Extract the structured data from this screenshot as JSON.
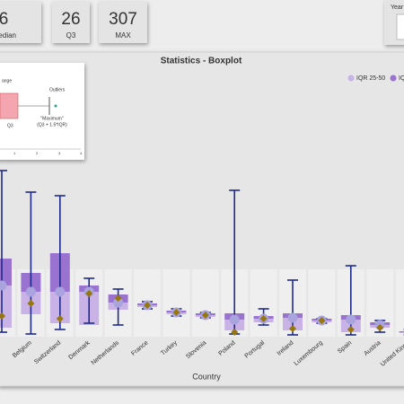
{
  "cards": [
    {
      "value": "6",
      "label": "Median"
    },
    {
      "value": "26",
      "label": "Q3"
    },
    {
      "value": "307",
      "label": "MAX"
    }
  ],
  "year_filter": {
    "label": "Year"
  },
  "inset": {
    "labels": [
      "ange",
      "Outliers",
      "Q3",
      "\"Maximum\"",
      "(Q3 + 1.5*IQR)"
    ],
    "ticks": [
      "1",
      "2",
      "3",
      "4"
    ]
  },
  "chart_data": {
    "type": "boxplot",
    "title": "Statistics - Boxplot",
    "x_label": "Country",
    "categories": [
      null,
      "Belgium",
      "Switzerland",
      "Denmark",
      "Netherlands",
      "France",
      "Turkey",
      "Slovenia",
      "Poland",
      "Portugal",
      "Ireland",
      "Luxembourg",
      "Spain",
      "Austria",
      "United Kingd"
    ],
    "low": [
      5,
      3,
      8,
      15,
      13,
      31,
      23,
      21,
      3,
      13,
      2,
      15,
      2,
      5,
      2
    ],
    "q1": [
      10,
      25,
      15,
      13,
      30,
      33,
      25,
      22,
      7,
      16,
      7,
      16,
      5,
      10,
      4
    ],
    "median": [
      57,
      50,
      50,
      50,
      38,
      35,
      27,
      24,
      19,
      20,
      21,
      18,
      19,
      13,
      5
    ],
    "q3": [
      87,
      71,
      93,
      57,
      47,
      37,
      29,
      26,
      26,
      23,
      26,
      20,
      24,
      16,
      6
    ],
    "high": [
      185,
      161,
      157,
      65,
      53,
      39,
      31,
      27,
      163,
      31,
      63,
      20,
      79,
      18,
      8
    ],
    "mean": [
      23,
      37,
      20,
      48,
      43,
      35,
      27,
      24,
      5,
      20,
      9,
      18,
      8,
      10,
      5
    ],
    "legend": [
      "IQR 25-50",
      "IQR"
    ],
    "colors": {
      "lower": "#c9b3e6",
      "upper": "#9a72cf",
      "whisker": "#1f2a8c",
      "median": "#a9a4de",
      "mean": "#96760f"
    },
    "ylim": [
      0,
      300
    ]
  }
}
